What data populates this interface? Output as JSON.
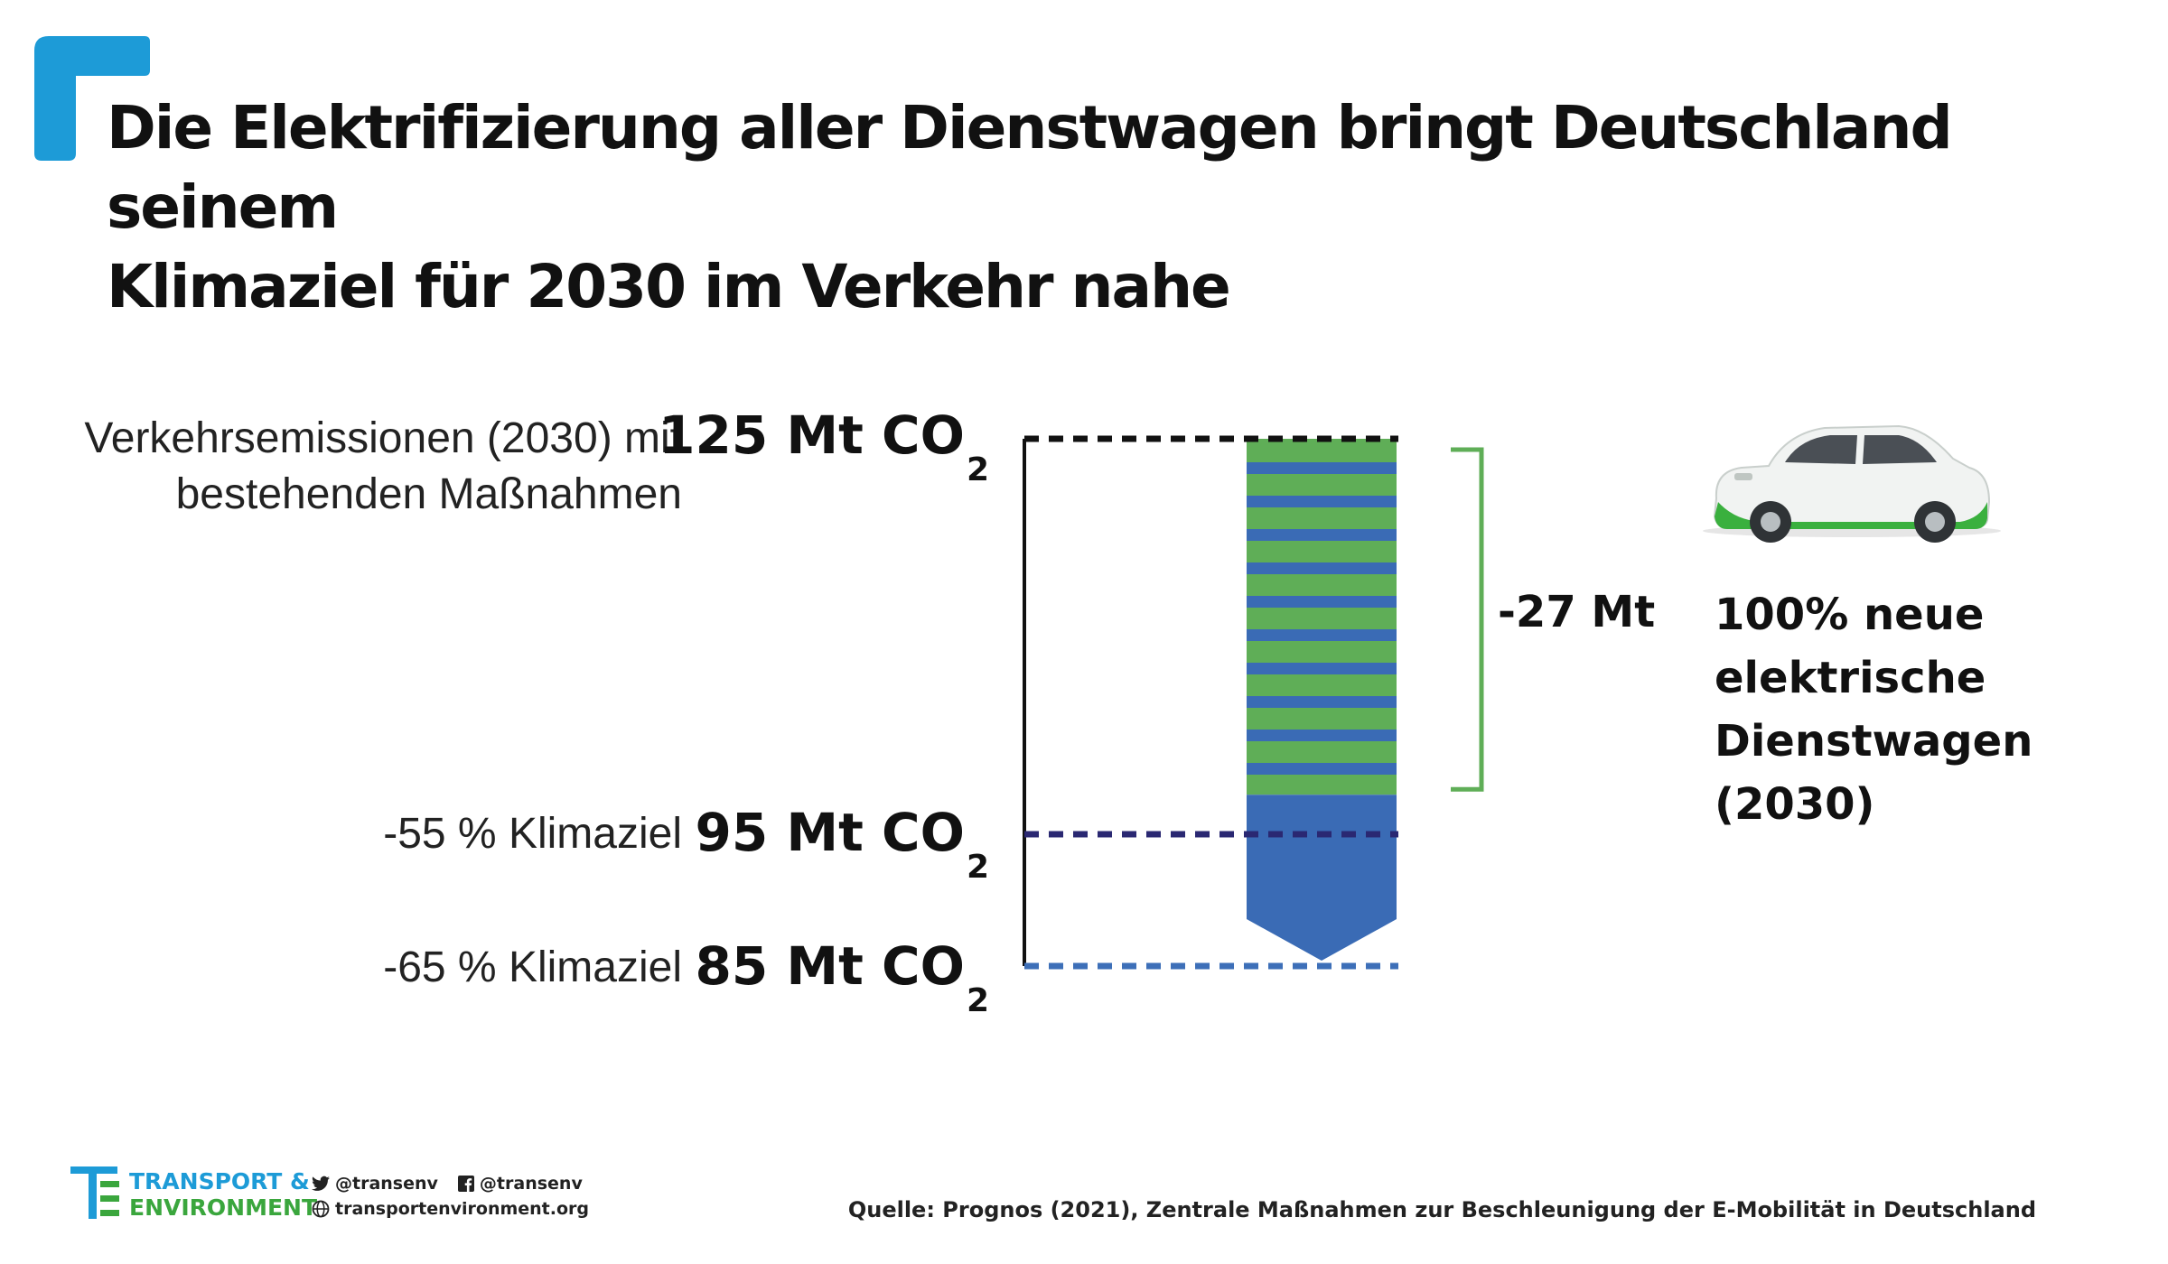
{
  "title_lines": [
    "Die Elektrifizierung aller Dienstwagen bringt Deutschland seinem",
    "Klimaziel für 2030 im Verkehr nahe"
  ],
  "rows": [
    {
      "label_lines": [
        "Verkehrsemissionen (2030) mit",
        "bestehenden Maßnahmen"
      ],
      "value": "125 Mt CO",
      "sub": "2"
    },
    {
      "label_lines": [
        "-55 % Klimaziel"
      ],
      "value": "95 Mt CO",
      "sub": "2"
    },
    {
      "label_lines": [
        "-65 % Klimaziel"
      ],
      "value": "85 Mt CO",
      "sub": "2"
    }
  ],
  "reduction_label": "-27 Mt",
  "car_caption_lines": [
    "100% neue",
    "elektrische",
    "Dienstwagen",
    "(2030)"
  ],
  "footer": {
    "brand_line1": "TRANSPORT &",
    "brand_line2": "ENVIRONMENT",
    "twitter": "@transenv",
    "facebook": "@transenv",
    "website": "transportenvironment.org",
    "source": "Quelle: Prognos (2021), Zentrale Maßnahmen zur Beschleunigung der E-Mobilität in Deutschland"
  },
  "colors": {
    "brand_blue": "#1d9bd7",
    "green": "#5fae57",
    "blue": "#3a6bb5",
    "navy": "#2a2872",
    "dash_blue": "#3d6fb8",
    "black": "#111111"
  },
  "icons": [
    "corner-bracket-icon",
    "car-icon",
    "te-logo-icon",
    "twitter-icon",
    "facebook-icon",
    "globe-icon"
  ],
  "chart_data": {
    "type": "bar",
    "unit": "Mt CO2",
    "levels": [
      {
        "name": "Verkehrsemissionen (2030) mit bestehenden Maßnahmen",
        "value": 125,
        "line_color": "#111111"
      },
      {
        "name": "-55 % Klimaziel",
        "value": 95,
        "line_color": "#2a2872"
      },
      {
        "name": "-65 % Klimaziel",
        "value": 85,
        "line_color": "#3d6fb8"
      }
    ],
    "bar": {
      "from": 125,
      "to": 98,
      "reduction": -27
    },
    "ylim": [
      85,
      125
    ]
  }
}
